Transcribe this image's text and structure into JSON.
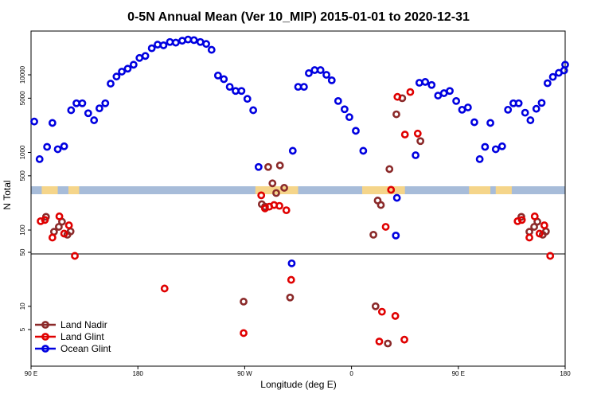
{
  "chart_data": {
    "type": "scatter",
    "title": "0-5N Annual Mean (Ver 10_MIP)   2015-01-01 to 2020-12-31",
    "xlabel": "Longitude (deg E)",
    "ylabel": "N Total",
    "y_scale": "log",
    "x_ticks": [
      "90 E",
      "180",
      "90 W",
      "0",
      "90 E",
      "180"
    ],
    "y_ticks_lower": [
      "5",
      "10",
      "50"
    ],
    "y_ticks_upper": [
      "100",
      "500",
      "1000",
      "5000",
      "10000"
    ],
    "legend_position": "bottom-left",
    "land_mask": {
      "ocean_color": "#a7bcd9",
      "land_color": "#f5d58a",
      "land_spans_x": [
        [
          0.02,
          0.05
        ],
        [
          0.07,
          0.09
        ],
        [
          0.42,
          0.5
        ],
        [
          0.62,
          0.7
        ],
        [
          0.82,
          0.86
        ],
        [
          0.87,
          0.9
        ]
      ]
    },
    "series": [
      {
        "name": "Land Nadir",
        "color": "#8b2a2a",
        "points": [
          [
            0.028,
            148
          ],
          [
            0.043,
            95
          ],
          [
            0.052,
            110
          ],
          [
            0.058,
            128
          ],
          [
            0.068,
            87
          ],
          [
            0.074,
            96
          ],
          [
            0.444,
            650
          ],
          [
            0.432,
            215
          ],
          [
            0.438,
            200
          ],
          [
            0.452,
            400
          ],
          [
            0.459,
            300
          ],
          [
            0.466,
            680
          ],
          [
            0.474,
            350
          ],
          [
            0.485,
            13
          ],
          [
            0.645,
            10
          ],
          [
            0.671,
            610
          ],
          [
            0.641,
            87
          ],
          [
            0.649,
            240
          ],
          [
            0.655,
            210
          ],
          [
            0.668,
            3.3
          ],
          [
            0.684,
            3100
          ],
          [
            0.695,
            5000
          ],
          [
            0.729,
            1400
          ],
          [
            0.918,
            148
          ],
          [
            0.933,
            95
          ],
          [
            0.942,
            110
          ],
          [
            0.948,
            128
          ],
          [
            0.958,
            87
          ],
          [
            0.964,
            96
          ],
          [
            0.398,
            11.5
          ]
        ]
      },
      {
        "name": "Land Glint",
        "color": "#e00000",
        "points": [
          [
            0.018,
            130
          ],
          [
            0.026,
            135
          ],
          [
            0.04,
            80
          ],
          [
            0.053,
            150
          ],
          [
            0.062,
            90
          ],
          [
            0.071,
            115
          ],
          [
            0.082,
            45
          ],
          [
            0.25,
            17
          ],
          [
            0.398,
            4.5
          ],
          [
            0.431,
            280
          ],
          [
            0.438,
            190
          ],
          [
            0.446,
            200
          ],
          [
            0.455,
            210
          ],
          [
            0.465,
            205
          ],
          [
            0.478,
            180
          ],
          [
            0.487,
            22
          ],
          [
            0.652,
            3.5
          ],
          [
            0.686,
            5200
          ],
          [
            0.664,
            110
          ],
          [
            0.7,
            1700
          ],
          [
            0.682,
            7.5
          ],
          [
            0.657,
            8.5
          ],
          [
            0.699,
            3.7
          ],
          [
            0.71,
            6000
          ],
          [
            0.724,
            1750
          ],
          [
            0.911,
            130
          ],
          [
            0.919,
            135
          ],
          [
            0.933,
            80
          ],
          [
            0.943,
            150
          ],
          [
            0.952,
            90
          ],
          [
            0.961,
            115
          ],
          [
            0.972,
            45
          ],
          [
            0.674,
            330
          ]
        ]
      },
      {
        "name": "Ocean Glint",
        "color": "#0000e0",
        "points": [
          [
            0.006,
            2500
          ],
          [
            0.016,
            820
          ],
          [
            0.03,
            1180
          ],
          [
            0.04,
            2400
          ],
          [
            0.05,
            1100
          ],
          [
            0.062,
            1200
          ],
          [
            0.075,
            3500
          ],
          [
            0.085,
            4300
          ],
          [
            0.096,
            4300
          ],
          [
            0.107,
            3200
          ],
          [
            0.118,
            2600
          ],
          [
            0.128,
            3700
          ],
          [
            0.139,
            4300
          ],
          [
            0.149,
            7700
          ],
          [
            0.16,
            9500
          ],
          [
            0.17,
            11000
          ],
          [
            0.181,
            12000
          ],
          [
            0.192,
            13500
          ],
          [
            0.203,
            16500
          ],
          [
            0.214,
            17500
          ],
          [
            0.226,
            22000
          ],
          [
            0.237,
            24500
          ],
          [
            0.248,
            24000
          ],
          [
            0.26,
            26500
          ],
          [
            0.271,
            26000
          ],
          [
            0.283,
            27500
          ],
          [
            0.294,
            28500
          ],
          [
            0.305,
            28000
          ],
          [
            0.317,
            26500
          ],
          [
            0.328,
            25000
          ],
          [
            0.338,
            21000
          ],
          [
            0.35,
            9800
          ],
          [
            0.361,
            8800
          ],
          [
            0.372,
            7000
          ],
          [
            0.383,
            6200
          ],
          [
            0.394,
            6200
          ],
          [
            0.405,
            4900
          ],
          [
            0.416,
            3500
          ],
          [
            0.426,
            650
          ],
          [
            0.488,
            36
          ],
          [
            0.49,
            1050
          ],
          [
            0.5,
            7000
          ],
          [
            0.511,
            7000
          ],
          [
            0.52,
            10500
          ],
          [
            0.531,
            11500
          ],
          [
            0.542,
            11500
          ],
          [
            0.553,
            10000
          ],
          [
            0.563,
            8500
          ],
          [
            0.575,
            4600
          ],
          [
            0.587,
            3600
          ],
          [
            0.596,
            2850
          ],
          [
            0.608,
            1900
          ],
          [
            0.622,
            1050
          ],
          [
            0.683,
            85
          ],
          [
            0.685,
            260
          ],
          [
            0.72,
            920
          ],
          [
            0.727,
            7900
          ],
          [
            0.738,
            8100
          ],
          [
            0.75,
            7400
          ],
          [
            0.762,
            5400
          ],
          [
            0.773,
            5800
          ],
          [
            0.784,
            6200
          ],
          [
            0.796,
            4600
          ],
          [
            0.807,
            3550
          ],
          [
            0.818,
            3800
          ],
          [
            0.83,
            2450
          ],
          [
            0.84,
            820
          ],
          [
            0.85,
            1180
          ],
          [
            0.86,
            2400
          ],
          [
            0.87,
            1100
          ],
          [
            0.882,
            1200
          ],
          [
            0.893,
            3550
          ],
          [
            0.903,
            4300
          ],
          [
            0.913,
            4300
          ],
          [
            0.925,
            3250
          ],
          [
            0.935,
            2600
          ],
          [
            0.946,
            3650
          ],
          [
            0.956,
            4350
          ],
          [
            0.967,
            7800
          ],
          [
            0.977,
            9400
          ],
          [
            0.988,
            10600
          ],
          [
            0.998,
            11400
          ],
          [
            1.0,
            13500
          ]
        ]
      }
    ]
  }
}
